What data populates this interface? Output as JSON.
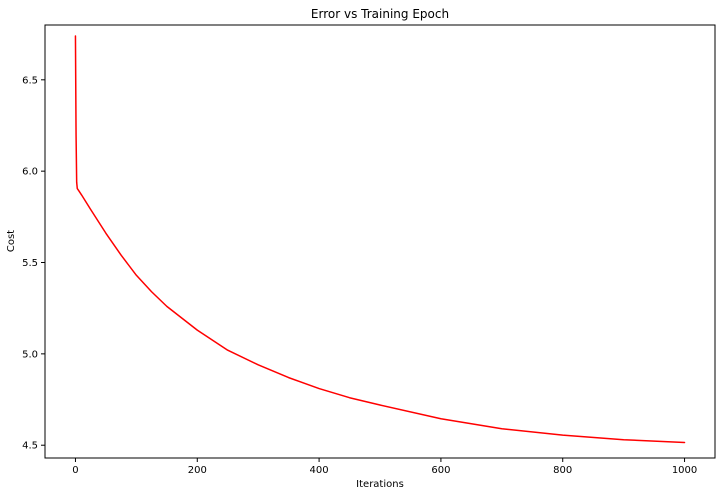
{
  "chart_data": {
    "type": "line",
    "title": "Error vs Training Epoch",
    "xlabel": "Iterations",
    "ylabel": "Cost",
    "xlim": [
      -50,
      1050
    ],
    "ylim": [
      4.43,
      6.8
    ],
    "xticks": [
      0,
      200,
      400,
      600,
      800,
      1000
    ],
    "yticks": [
      4.5,
      5.0,
      5.5,
      6.0,
      6.5
    ],
    "xtick_labels": [
      "0",
      "200",
      "400",
      "600",
      "800",
      "1000"
    ],
    "ytick_labels": [
      "4.5",
      "5.0",
      "5.5",
      "6.0",
      "6.5"
    ],
    "grid": false,
    "color": "#ff0000",
    "series": [
      {
        "x": [
          0,
          1,
          2,
          3,
          5,
          10,
          25,
          50,
          75,
          100,
          125,
          150,
          200,
          250,
          300,
          350,
          400,
          450,
          500,
          600,
          700,
          800,
          900,
          1000
        ],
        "values": [
          6.74,
          6.2,
          5.94,
          5.905,
          5.895,
          5.87,
          5.79,
          5.66,
          5.54,
          5.43,
          5.34,
          5.26,
          5.13,
          5.02,
          4.94,
          4.87,
          4.81,
          4.76,
          4.72,
          4.645,
          4.59,
          4.555,
          4.53,
          4.515
        ]
      }
    ]
  }
}
